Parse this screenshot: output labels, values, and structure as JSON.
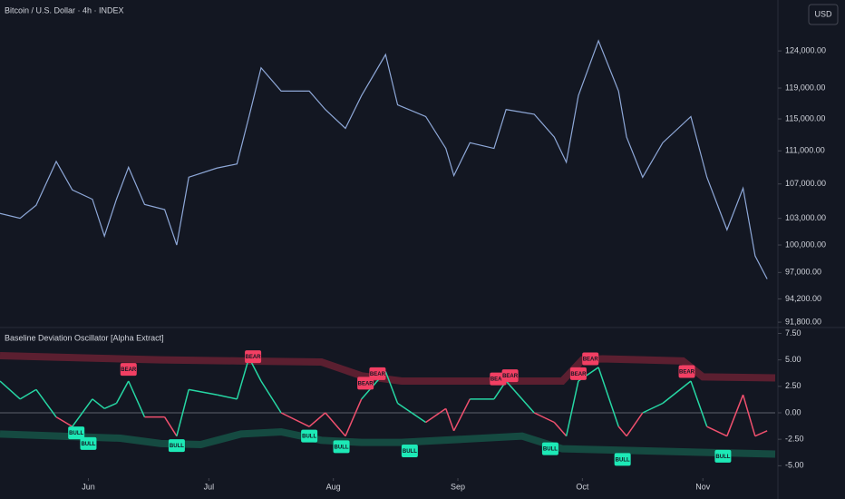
{
  "chart_data": [
    {
      "type": "line",
      "title": "Bitcoin / U.S. Dollar · 4h · INDEX",
      "currency": "USD",
      "log": true,
      "xlim": [
        0,
        193
      ],
      "ylim": [
        91350,
        131200
      ],
      "yticks": [
        {
          "value": 124000,
          "label": "124,000.00"
        },
        {
          "value": 119000,
          "label": "119,000.00"
        },
        {
          "value": 115000,
          "label": "115,000.00"
        },
        {
          "value": 111000,
          "label": "111,000.00"
        },
        {
          "value": 107000,
          "label": "107,000.00"
        },
        {
          "value": 103000,
          "label": "103,000.00"
        },
        {
          "value": 100000,
          "label": "100,000.00"
        },
        {
          "value": 97000,
          "label": "97,000.00"
        },
        {
          "value": 94200,
          "label": "94,200.00"
        },
        {
          "value": 91800,
          "label": "91,800.00"
        }
      ],
      "series": [
        {
          "color": "#8ea8d8",
          "x": [
            0,
            5,
            9,
            14,
            18,
            23,
            26,
            29,
            32,
            36,
            41,
            44,
            47,
            54,
            59,
            62,
            65,
            70,
            77,
            81,
            86,
            90,
            96,
            99,
            106,
            111,
            113,
            117,
            123,
            126,
            133,
            138,
            141,
            144,
            149,
            154,
            156,
            160,
            165,
            172,
            176,
            181,
            185,
            188,
            191
          ],
          "values": [
            103560,
            103000,
            104500,
            109700,
            106300,
            105200,
            101000,
            105200,
            109000,
            104600,
            104000,
            100000,
            107800,
            108900,
            109400,
            115300,
            121700,
            118600,
            118600,
            116200,
            113800,
            118000,
            123500,
            116800,
            115300,
            111300,
            108000,
            112000,
            111300,
            116200,
            115600,
            112700,
            109600,
            118000,
            125400,
            118600,
            112700,
            107800,
            112000,
            115300,
            107800,
            101700,
            106500,
            98800,
            96300
          ]
        }
      ]
    },
    {
      "type": "line",
      "title": "Baseline Deviation Oscillator [Alpha Extract]",
      "xlim": [
        0,
        193
      ],
      "ylim": [
        -6,
        7.8
      ],
      "xticks": [
        {
          "value": 22,
          "label": "Jun"
        },
        {
          "value": 52,
          "label": "Jul"
        },
        {
          "value": 83,
          "label": "Aug"
        },
        {
          "value": 114,
          "label": "Sep"
        },
        {
          "value": 145,
          "label": "Oct"
        },
        {
          "value": 175,
          "label": "Nov"
        }
      ],
      "yticks": [
        {
          "value": 7.5,
          "label": "7.50"
        },
        {
          "value": 5,
          "label": "5.00"
        },
        {
          "value": 2.5,
          "label": "2.50"
        },
        {
          "value": 0,
          "label": "0.00"
        },
        {
          "value": -2.5,
          "label": "-2.50"
        },
        {
          "value": -5,
          "label": "-5.00"
        }
      ],
      "zero_line": true,
      "series": [
        {
          "color": "#26d7a4",
          "color_negative": "#f0506e",
          "x": [
            0,
            5,
            9,
            14,
            18,
            23,
            26,
            29,
            32,
            36,
            41,
            44,
            47,
            54,
            59,
            62,
            65,
            70,
            77,
            81,
            86,
            90,
            96,
            99,
            106,
            111,
            113,
            117,
            123,
            126,
            133,
            138,
            141,
            144,
            149,
            154,
            156,
            160,
            165,
            172,
            176,
            181,
            185,
            188,
            191
          ],
          "values": [
            3.0,
            1.3,
            2.2,
            -0.4,
            -1.3,
            1.3,
            0.4,
            0.9,
            3.0,
            -0.4,
            -0.4,
            -2.2,
            2.2,
            1.7,
            1.3,
            5.2,
            3.0,
            0,
            -1.3,
            0,
            -2.2,
            1.3,
            3.9,
            0.9,
            -0.9,
            0.4,
            -1.7,
            1.3,
            1.3,
            3.0,
            0,
            -0.9,
            -2.2,
            3.0,
            4.3,
            -1.3,
            -2.2,
            0,
            0.9,
            3.0,
            -1.3,
            -2.2,
            1.7,
            -2.2,
            -1.7
          ]
        }
      ],
      "bands": [
        {
          "color": "#7a2436",
          "x": [
            0,
            20,
            40,
            60,
            80,
            90,
            100,
            120,
            140,
            145,
            150,
            160,
            170,
            175,
            193
          ],
          "values": [
            5.4,
            5.2,
            5.0,
            4.9,
            4.8,
            3.5,
            3.0,
            3.0,
            3.0,
            5.0,
            5.1,
            5.0,
            4.9,
            3.4,
            3.3
          ]
        },
        {
          "color": "#17614f",
          "x": [
            0,
            30,
            40,
            50,
            60,
            70,
            80,
            90,
            100,
            130,
            140,
            193
          ],
          "values": [
            -2.0,
            -2.4,
            -2.9,
            -3.0,
            -2.0,
            -1.8,
            -2.6,
            -2.8,
            -2.8,
            -2.2,
            -3.4,
            -3.9
          ]
        }
      ],
      "signals": [
        {
          "x": 32,
          "value": 4.1,
          "label": "BEAR",
          "color": "#f23f63"
        },
        {
          "x": 63,
          "value": 5.3,
          "label": "BEAR",
          "color": "#f23f63"
        },
        {
          "x": 91,
          "value": 2.8,
          "label": "BEAR",
          "color": "#f23f63"
        },
        {
          "x": 94,
          "value": 3.7,
          "label": "BEAR",
          "color": "#f23f63"
        },
        {
          "x": 124,
          "value": 3.2,
          "label": "BEAR",
          "color": "#f23f63"
        },
        {
          "x": 127,
          "value": 3.5,
          "label": "BEAR",
          "color": "#f23f63"
        },
        {
          "x": 144,
          "value": 3.7,
          "label": "BEAR",
          "color": "#f23f63"
        },
        {
          "x": 147,
          "value": 5.1,
          "label": "BEAR",
          "color": "#f23f63"
        },
        {
          "x": 171,
          "value": 3.9,
          "label": "BEAR",
          "color": "#f23f63"
        },
        {
          "x": 19,
          "value": -1.9,
          "label": "BULL",
          "color": "#1de9b6"
        },
        {
          "x": 22,
          "value": -2.9,
          "label": "BULL",
          "color": "#1de9b6"
        },
        {
          "x": 44,
          "value": -3.1,
          "label": "BULL",
          "color": "#1de9b6"
        },
        {
          "x": 77,
          "value": -2.2,
          "label": "BULL",
          "color": "#1de9b6"
        },
        {
          "x": 85,
          "value": -3.2,
          "label": "BULL",
          "color": "#1de9b6"
        },
        {
          "x": 102,
          "value": -3.6,
          "label": "BULL",
          "color": "#1de9b6"
        },
        {
          "x": 137,
          "value": -3.4,
          "label": "BULL",
          "color": "#1de9b6"
        },
        {
          "x": 155,
          "value": -4.4,
          "label": "BULL",
          "color": "#1de9b6"
        },
        {
          "x": 180,
          "value": -4.1,
          "label": "BULL",
          "color": "#1de9b6"
        }
      ]
    }
  ]
}
